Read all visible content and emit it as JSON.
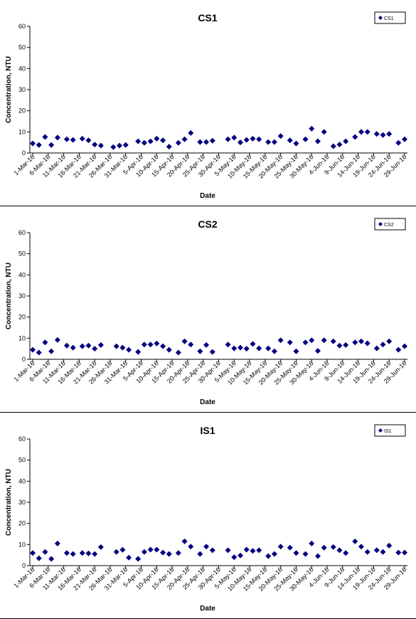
{
  "chart_data": [
    {
      "type": "scatter",
      "title": "CS1",
      "xlabel": "Date",
      "ylabel": "Concentration, NTU",
      "ylim": [
        0,
        60
      ],
      "yticks": [
        "0",
        "10",
        "20",
        "30",
        "40",
        "50",
        "60"
      ],
      "xticks": [
        "1-Mar-16",
        "6-Mar-16",
        "11-Mar-16",
        "16-Mar-16",
        "21-Mar-16",
        "26-Mar-16",
        "31-Mar-16",
        "5-Apr-16",
        "10-Apr-16",
        "15-Apr-16",
        "20-Apr-16",
        "25-Apr-16",
        "30-Apr-16",
        "5-May-16",
        "10-May-16",
        "15-May-16",
        "20-May-16",
        "25-May-16",
        "30-May-16",
        "4-Jun-16",
        "9-Jun-16",
        "14-Jun-16",
        "19-Jun-16",
        "24-Jun-16",
        "29-Jun-16"
      ],
      "grid": false,
      "legend": "top-right",
      "series": [
        {
          "name": "CS1",
          "color": "#000080",
          "marker": "diamond",
          "points": [
            [
              "1-Mar-16",
              4.5
            ],
            [
              "3-Mar-16",
              3.8
            ],
            [
              "5-Mar-16",
              7.6
            ],
            [
              "7-Mar-16",
              3.8
            ],
            [
              "9-Mar-16",
              7.3
            ],
            [
              "12-Mar-16",
              6.5
            ],
            [
              "14-Mar-16",
              6.2
            ],
            [
              "17-Mar-16",
              6.8
            ],
            [
              "19-Mar-16",
              6.0
            ],
            [
              "21-Mar-16",
              4.0
            ],
            [
              "23-Mar-16",
              3.5
            ],
            [
              "27-Mar-16",
              2.8
            ],
            [
              "29-Mar-16",
              3.5
            ],
            [
              "31-Mar-16",
              3.8
            ],
            [
              "4-Apr-16",
              5.5
            ],
            [
              "6-Apr-16",
              4.8
            ],
            [
              "8-Apr-16",
              5.5
            ],
            [
              "10-Apr-16",
              6.8
            ],
            [
              "12-Apr-16",
              6.0
            ],
            [
              "14-Apr-16",
              3.0
            ],
            [
              "17-Apr-16",
              4.8
            ],
            [
              "19-Apr-16",
              6.5
            ],
            [
              "21-Apr-16",
              9.5
            ],
            [
              "24-Apr-16",
              5.2
            ],
            [
              "26-Apr-16",
              5.2
            ],
            [
              "28-Apr-16",
              5.8
            ],
            [
              "3-May-16",
              6.5
            ],
            [
              "5-May-16",
              7.3
            ],
            [
              "7-May-16",
              5.0
            ],
            [
              "9-May-16",
              6.2
            ],
            [
              "11-May-16",
              6.8
            ],
            [
              "13-May-16",
              6.5
            ],
            [
              "16-May-16",
              5.2
            ],
            [
              "18-May-16",
              5.2
            ],
            [
              "20-May-16",
              8.0
            ],
            [
              "23-May-16",
              6.0
            ],
            [
              "25-May-16",
              4.5
            ],
            [
              "28-May-16",
              6.5
            ],
            [
              "30-May-16",
              11.5
            ],
            [
              "1-Jun-16",
              5.5
            ],
            [
              "3-Jun-16",
              10.0
            ],
            [
              "6-Jun-16",
              3.2
            ],
            [
              "8-Jun-16",
              4.0
            ],
            [
              "10-Jun-16",
              5.5
            ],
            [
              "13-Jun-16",
              7.6
            ],
            [
              "15-Jun-16",
              10.0
            ],
            [
              "17-Jun-16",
              10.0
            ],
            [
              "20-Jun-16",
              9.0
            ],
            [
              "22-Jun-16",
              8.5
            ],
            [
              "24-Jun-16",
              9.0
            ],
            [
              "27-Jun-16",
              4.8
            ],
            [
              "29-Jun-16",
              6.5
            ]
          ]
        }
      ]
    },
    {
      "type": "scatter",
      "title": "CS2",
      "xlabel": "Date",
      "ylabel": "Concentration, NTU",
      "ylim": [
        0,
        60
      ],
      "yticks": [
        "0",
        "10",
        "20",
        "30",
        "40",
        "50",
        "60"
      ],
      "xticks": [
        "1-Mar-16",
        "6-Mar-16",
        "11-Mar-16",
        "16-Mar-16",
        "21-Mar-16",
        "26-Mar-16",
        "31-Mar-16",
        "5-Apr-16",
        "10-Apr-16",
        "15-Apr-16",
        "20-Apr-16",
        "25-Apr-16",
        "30-Apr-16",
        "5-May-16",
        "10-May-16",
        "15-May-16",
        "20-May-16",
        "25-May-16",
        "30-May-16",
        "4-Jun-16",
        "9-Jun-16",
        "14-Jun-16",
        "19-Jun-16",
        "24-Jun-16",
        "29-Jun-16"
      ],
      "grid": false,
      "legend": "top-right",
      "series": [
        {
          "name": "CS2",
          "color": "#000080",
          "marker": "diamond",
          "points": [
            [
              "1-Mar-16",
              4.5
            ],
            [
              "3-Mar-16",
              3.2
            ],
            [
              "5-Mar-16",
              8.0
            ],
            [
              "7-Mar-16",
              3.8
            ],
            [
              "9-Mar-16",
              9.2
            ],
            [
              "12-Mar-16",
              6.5
            ],
            [
              "14-Mar-16",
              5.5
            ],
            [
              "17-Mar-16",
              6.2
            ],
            [
              "19-Mar-16",
              6.5
            ],
            [
              "21-Mar-16",
              5.0
            ],
            [
              "23-Mar-16",
              6.8
            ],
            [
              "28-Mar-16",
              6.2
            ],
            [
              "30-Mar-16",
              5.5
            ],
            [
              "1-Apr-16",
              4.5
            ],
            [
              "4-Apr-16",
              3.5
            ],
            [
              "6-Apr-16",
              7.0
            ],
            [
              "8-Apr-16",
              7.0
            ],
            [
              "10-Apr-16",
              7.5
            ],
            [
              "12-Apr-16",
              6.2
            ],
            [
              "14-Apr-16",
              4.5
            ],
            [
              "17-Apr-16",
              3.2
            ],
            [
              "19-Apr-16",
              8.5
            ],
            [
              "21-Apr-16",
              7.0
            ],
            [
              "24-Apr-16",
              3.8
            ],
            [
              "26-Apr-16",
              6.8
            ],
            [
              "28-Apr-16",
              3.5
            ],
            [
              "3-May-16",
              7.0
            ],
            [
              "5-May-16",
              5.2
            ],
            [
              "7-May-16",
              5.5
            ],
            [
              "9-May-16",
              5.0
            ],
            [
              "11-May-16",
              7.3
            ],
            [
              "13-May-16",
              5.2
            ],
            [
              "16-May-16",
              5.2
            ],
            [
              "18-May-16",
              3.8
            ],
            [
              "20-May-16",
              9.0
            ],
            [
              "23-May-16",
              8.0
            ],
            [
              "25-May-16",
              3.8
            ],
            [
              "28-May-16",
              8.0
            ],
            [
              "30-May-16",
              9.0
            ],
            [
              "1-Jun-16",
              4.0
            ],
            [
              "3-Jun-16",
              9.0
            ],
            [
              "6-Jun-16",
              8.5
            ],
            [
              "8-Jun-16",
              6.5
            ],
            [
              "10-Jun-16",
              6.8
            ],
            [
              "13-Jun-16",
              8.0
            ],
            [
              "15-Jun-16",
              8.5
            ],
            [
              "17-Jun-16",
              7.6
            ],
            [
              "20-Jun-16",
              5.2
            ],
            [
              "22-Jun-16",
              7.0
            ],
            [
              "24-Jun-16",
              8.5
            ],
            [
              "27-Jun-16",
              4.5
            ],
            [
              "29-Jun-16",
              6.2
            ]
          ]
        }
      ]
    },
    {
      "type": "scatter",
      "title": "IS1",
      "xlabel": "Date",
      "ylabel": "Concentration, NTU",
      "ylim": [
        0,
        60
      ],
      "yticks": [
        "0",
        "10",
        "20",
        "30",
        "40",
        "50",
        "60"
      ],
      "xticks": [
        "1-Mar-16",
        "6-Mar-16",
        "11-Mar-16",
        "16-Mar-16",
        "21-Mar-16",
        "26-Mar-16",
        "31-Mar-16",
        "5-Apr-16",
        "10-Apr-16",
        "15-Apr-16",
        "20-Apr-16",
        "25-Apr-16",
        "30-Apr-16",
        "5-May-16",
        "10-May-16",
        "15-May-16",
        "20-May-16",
        "25-May-16",
        "30-May-16",
        "4-Jun-16",
        "9-Jun-16",
        "14-Jun-16",
        "19-Jun-16",
        "24-Jun-16",
        "29-Jun-16"
      ],
      "grid": false,
      "legend": "top-right",
      "series": [
        {
          "name": "IS1",
          "color": "#000080",
          "marker": "diamond",
          "points": [
            [
              "1-Mar-16",
              6.0
            ],
            [
              "3-Mar-16",
              3.5
            ],
            [
              "5-Mar-16",
              6.5
            ],
            [
              "7-Mar-16",
              3.2
            ],
            [
              "9-Mar-16",
              10.5
            ],
            [
              "12-Mar-16",
              6.0
            ],
            [
              "14-Mar-16",
              5.5
            ],
            [
              "17-Mar-16",
              6.0
            ],
            [
              "19-Mar-16",
              5.8
            ],
            [
              "21-Mar-16",
              5.5
            ],
            [
              "23-Mar-16",
              8.8
            ],
            [
              "28-Mar-16",
              6.5
            ],
            [
              "30-Mar-16",
              7.5
            ],
            [
              "1-Apr-16",
              3.8
            ],
            [
              "4-Apr-16",
              3.2
            ],
            [
              "6-Apr-16",
              6.5
            ],
            [
              "8-Apr-16",
              7.6
            ],
            [
              "10-Apr-16",
              7.6
            ],
            [
              "12-Apr-16",
              6.2
            ],
            [
              "14-Apr-16",
              5.5
            ],
            [
              "17-Apr-16",
              6.0
            ],
            [
              "19-Apr-16",
              11.5
            ],
            [
              "21-Apr-16",
              9.0
            ],
            [
              "24-Apr-16",
              5.5
            ],
            [
              "26-Apr-16",
              9.0
            ],
            [
              "28-Apr-16",
              7.3
            ],
            [
              "3-May-16",
              7.3
            ],
            [
              "5-May-16",
              4.0
            ],
            [
              "7-May-16",
              4.8
            ],
            [
              "9-May-16",
              7.6
            ],
            [
              "11-May-16",
              7.0
            ],
            [
              "13-May-16",
              7.3
            ],
            [
              "16-May-16",
              4.5
            ],
            [
              "18-May-16",
              5.5
            ],
            [
              "20-May-16",
              9.0
            ],
            [
              "23-May-16",
              8.5
            ],
            [
              "25-May-16",
              6.0
            ],
            [
              "28-May-16",
              5.5
            ],
            [
              "30-May-16",
              10.5
            ],
            [
              "1-Jun-16",
              4.5
            ],
            [
              "3-Jun-16",
              8.5
            ],
            [
              "6-Jun-16",
              8.8
            ],
            [
              "8-Jun-16",
              7.3
            ],
            [
              "10-Jun-16",
              6.0
            ],
            [
              "13-Jun-16",
              11.5
            ],
            [
              "15-Jun-16",
              9.0
            ],
            [
              "17-Jun-16",
              6.5
            ],
            [
              "20-Jun-16",
              7.3
            ],
            [
              "22-Jun-16",
              6.5
            ],
            [
              "24-Jun-16",
              9.5
            ],
            [
              "27-Jun-16",
              6.2
            ],
            [
              "29-Jun-16",
              6.2
            ]
          ]
        }
      ]
    }
  ]
}
